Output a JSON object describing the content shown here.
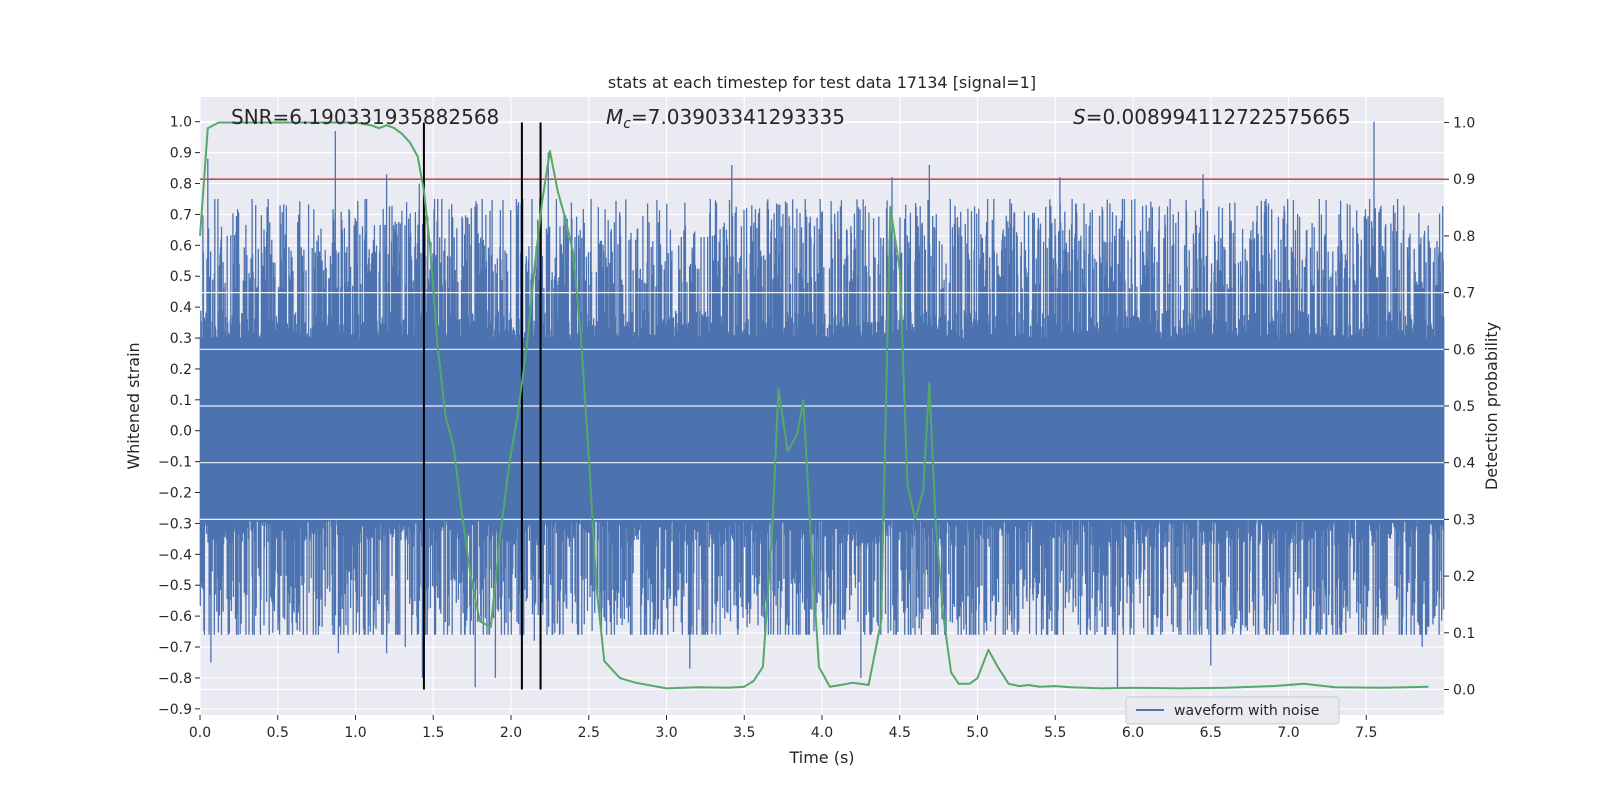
{
  "chart_data": {
    "type": "line",
    "title": "stats at each timestep for test data 17134 [signal=1]",
    "xlabel": "Time (s)",
    "ylabel": "Whitened strain",
    "y2label": "Detection probability",
    "xlim": [
      0.0,
      8.0
    ],
    "ylim": [
      -0.92,
      1.08
    ],
    "y2lim": [
      -0.045,
      1.045
    ],
    "xticks": [
      0.0,
      0.5,
      1.0,
      1.5,
      2.0,
      2.5,
      3.0,
      3.5,
      4.0,
      4.5,
      5.0,
      5.5,
      6.0,
      6.5,
      7.0,
      7.5
    ],
    "yticks": [
      -0.9,
      -0.8,
      -0.7,
      -0.6,
      -0.5,
      -0.4,
      -0.3,
      -0.2,
      -0.1,
      0.0,
      0.1,
      0.2,
      0.3,
      0.4,
      0.5,
      0.6,
      0.7,
      0.8,
      0.9,
      1.0
    ],
    "y2ticks": [
      0.0,
      0.1,
      0.2,
      0.3,
      0.4,
      0.5,
      0.6,
      0.7,
      0.8,
      0.9,
      1.0
    ],
    "grid": true,
    "legend_placement": "lower-right",
    "annotations": {
      "snr": "SNR=6.190331935882568",
      "mc": "=7.03903341293335",
      "s": "=0.008994112722575665"
    },
    "threshold": {
      "axis": "right",
      "value": 0.9,
      "color": "#c44e52"
    },
    "vlines": [
      1.44,
      2.07,
      2.19
    ],
    "series": [
      {
        "name": "waveform with noise",
        "axis": "left",
        "color": "#4c72b0",
        "kind": "noisy-waveform",
        "core_band": [
          -0.27,
          0.28
        ],
        "upper_envelope": [
          0.44,
          0.62
        ],
        "lower_envelope": [
          -0.46,
          -0.6
        ],
        "spikes": [
          {
            "x": 0.05,
            "y": 0.88
          },
          {
            "x": 0.07,
            "y": -0.75
          },
          {
            "x": 0.87,
            "y": 0.97
          },
          {
            "x": 0.89,
            "y": -0.72
          },
          {
            "x": 1.2,
            "y": 0.83
          },
          {
            "x": 1.2,
            "y": -0.72
          },
          {
            "x": 1.32,
            "y": -0.7
          },
          {
            "x": 1.41,
            "y": 0.8
          },
          {
            "x": 1.43,
            "y": -0.8
          },
          {
            "x": 1.77,
            "y": -0.83
          },
          {
            "x": 1.9,
            "y": -0.8
          },
          {
            "x": 2.24,
            "y": 0.9
          },
          {
            "x": 2.15,
            "y": -0.68
          },
          {
            "x": 3.42,
            "y": 0.86
          },
          {
            "x": 3.15,
            "y": -0.77
          },
          {
            "x": 4.25,
            "y": -0.8
          },
          {
            "x": 4.45,
            "y": 0.82
          },
          {
            "x": 4.69,
            "y": 0.86
          },
          {
            "x": 5.53,
            "y": 0.82
          },
          {
            "x": 5.9,
            "y": -0.83
          },
          {
            "x": 6.45,
            "y": 0.83
          },
          {
            "x": 6.5,
            "y": -0.76
          },
          {
            "x": 7.55,
            "y": 1.0
          },
          {
            "x": 7.86,
            "y": -0.7
          }
        ]
      },
      {
        "name": "",
        "axis": "right",
        "color": "#55a868",
        "x": [
          0.0,
          0.05,
          0.12,
          0.25,
          0.5,
          0.75,
          1.0,
          1.1,
          1.15,
          1.2,
          1.25,
          1.3,
          1.35,
          1.4,
          1.44,
          1.48,
          1.53,
          1.58,
          1.63,
          1.68,
          1.74,
          1.8,
          1.87,
          1.93,
          1.99,
          2.04,
          2.1,
          2.15,
          2.2,
          2.25,
          2.3,
          2.35,
          2.4,
          2.45,
          2.5,
          2.55,
          2.6,
          2.7,
          2.8,
          3.0,
          3.2,
          3.4,
          3.5,
          3.56,
          3.62,
          3.68,
          3.72,
          3.78,
          3.84,
          3.88,
          3.93,
          3.98,
          4.05,
          4.12,
          4.2,
          4.3,
          4.38,
          4.44,
          4.5,
          4.55,
          4.6,
          4.65,
          4.69,
          4.73,
          4.78,
          4.83,
          4.88,
          4.95,
          5.0,
          5.07,
          5.13,
          5.2,
          5.27,
          5.33,
          5.4,
          5.5,
          5.6,
          5.8,
          6.0,
          6.3,
          6.6,
          6.9,
          7.1,
          7.3,
          7.6,
          7.9
        ],
        "y": [
          0.8,
          0.99,
          1.0,
          1.0,
          1.0,
          1.0,
          1.0,
          0.995,
          0.99,
          0.995,
          0.99,
          0.98,
          0.965,
          0.94,
          0.88,
          0.78,
          0.6,
          0.48,
          0.43,
          0.32,
          0.2,
          0.12,
          0.11,
          0.27,
          0.4,
          0.48,
          0.6,
          0.74,
          0.86,
          0.95,
          0.88,
          0.83,
          0.77,
          0.62,
          0.41,
          0.18,
          0.05,
          0.02,
          0.012,
          0.002,
          0.004,
          0.003,
          0.005,
          0.015,
          0.04,
          0.28,
          0.53,
          0.42,
          0.45,
          0.51,
          0.26,
          0.04,
          0.005,
          0.008,
          0.012,
          0.008,
          0.12,
          0.85,
          0.74,
          0.36,
          0.3,
          0.35,
          0.54,
          0.3,
          0.13,
          0.03,
          0.01,
          0.01,
          0.02,
          0.07,
          0.04,
          0.01,
          0.006,
          0.008,
          0.005,
          0.006,
          0.004,
          0.002,
          0.003,
          0.002,
          0.003,
          0.006,
          0.01,
          0.004,
          0.003,
          0.005
        ]
      }
    ]
  }
}
